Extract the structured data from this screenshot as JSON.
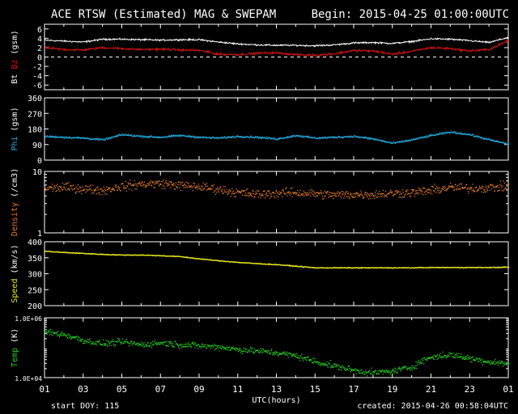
{
  "header": {
    "title": "ACE RTSW (Estimated) MAG & SWEPAM",
    "begin": "Begin: 2015-04-25 01:00:00UTC"
  },
  "footer": {
    "start_doy": "start DOY: 115",
    "created": "created: 2015-04-26 00:58:04UTC"
  },
  "colors": {
    "background": "#000000",
    "frame": "#ffffff",
    "bt": "#ffffff",
    "bz": "#dd1111",
    "phi": "#22aadd",
    "density": "#e07a2a",
    "speed": "#e8e81a",
    "temp": "#22cc22"
  },
  "chart_data": [
    {
      "type": "line",
      "panel": "mag",
      "ylabel_parts": [
        {
          "text": "Bt",
          "color": "#ffffff"
        },
        {
          "text": " ",
          "color": "#ffffff"
        },
        {
          "text": "Bz",
          "color": "#dd1111"
        },
        {
          "text": "  (gsm)",
          "color": "#ffffff"
        }
      ],
      "ylim": [
        -7,
        7
      ],
      "ticks": [
        -6,
        -4,
        -2,
        0,
        2,
        4,
        6
      ],
      "tick_labels": [
        "-6",
        "-4",
        "-2",
        "0",
        "2",
        "4",
        "6"
      ],
      "zero_line": true,
      "x": [
        1,
        2,
        3,
        4,
        5,
        6,
        7,
        8,
        9,
        10,
        11,
        12,
        13,
        14,
        15,
        16,
        17,
        18,
        19,
        20,
        21,
        22,
        23,
        24,
        25
      ],
      "series": [
        {
          "name": "Bt",
          "color": "#ffffff",
          "noise": 0.25,
          "values": [
            3.6,
            3.4,
            3.2,
            3.8,
            3.8,
            3.7,
            3.6,
            3.7,
            3.7,
            3.2,
            2.8,
            2.6,
            2.5,
            2.5,
            2.4,
            2.6,
            3.0,
            3.1,
            2.9,
            3.3,
            3.9,
            3.8,
            3.5,
            3.1,
            4.2
          ]
        },
        {
          "name": "Bz",
          "color": "#dd1111",
          "noise": 0.35,
          "values": [
            2.0,
            1.6,
            1.5,
            2.0,
            1.8,
            1.6,
            1.7,
            1.5,
            1.4,
            0.6,
            0.5,
            0.8,
            0.9,
            0.5,
            0.4,
            0.7,
            1.4,
            1.3,
            0.6,
            1.2,
            2.0,
            1.8,
            1.3,
            1.6,
            3.5
          ]
        }
      ]
    },
    {
      "type": "scatter",
      "panel": "phi",
      "ylabel_parts": [
        {
          "text": "Phi",
          "color": "#22aadd"
        },
        {
          "text": " (gsm)",
          "color": "#ffffff"
        }
      ],
      "ylim": [
        0,
        360
      ],
      "ticks": [
        0,
        90,
        180,
        270,
        360
      ],
      "tick_labels": [
        "0",
        "90",
        "180",
        "270",
        "360"
      ],
      "x": [
        1,
        2,
        3,
        4,
        5,
        6,
        7,
        8,
        9,
        10,
        11,
        12,
        13,
        14,
        15,
        16,
        17,
        18,
        19,
        20,
        21,
        22,
        23,
        24,
        25
      ],
      "series": [
        {
          "name": "Phi",
          "color": "#22aadd",
          "noise": 8,
          "values": [
            140,
            135,
            130,
            120,
            150,
            140,
            135,
            145,
            135,
            130,
            140,
            135,
            125,
            145,
            130,
            135,
            140,
            125,
            100,
            120,
            145,
            165,
            150,
            120,
            95
          ]
        }
      ]
    },
    {
      "type": "scatter",
      "panel": "density",
      "ylabel_parts": [
        {
          "text": "Density",
          "color": "#e07a2a"
        },
        {
          "text": " (/cm3)",
          "color": "#ffffff"
        }
      ],
      "log": true,
      "ylim": [
        1,
        10
      ],
      "ticks": [
        1,
        10
      ],
      "tick_labels": [
        "1",
        "10"
      ],
      "x": [
        1,
        2,
        3,
        4,
        5,
        6,
        7,
        8,
        9,
        10,
        11,
        12,
        13,
        14,
        15,
        16,
        17,
        18,
        19,
        20,
        21,
        22,
        23,
        24,
        25
      ],
      "series": [
        {
          "name": "Density",
          "color": "#e07a2a",
          "noise": 0.9,
          "values": [
            5.4,
            5.6,
            5.3,
            5.0,
            5.8,
            6.3,
            6.5,
            6.0,
            5.7,
            5.2,
            4.6,
            4.3,
            4.5,
            4.6,
            4.4,
            4.2,
            4.3,
            4.3,
            4.5,
            4.6,
            5.0,
            5.6,
            5.4,
            5.5,
            5.8
          ]
        }
      ]
    },
    {
      "type": "scatter",
      "panel": "speed",
      "ylabel_parts": [
        {
          "text": "Speed",
          "color": "#e8e81a"
        },
        {
          "text": " (km/s)",
          "color": "#ffffff"
        }
      ],
      "ylim": [
        200,
        400
      ],
      "ticks": [
        200,
        250,
        300,
        350,
        400
      ],
      "tick_labels": [
        "200",
        "250",
        "300",
        "350",
        "400"
      ],
      "x": [
        1,
        2,
        3,
        4,
        5,
        6,
        7,
        8,
        9,
        10,
        11,
        12,
        13,
        14,
        15,
        16,
        17,
        18,
        19,
        20,
        21,
        22,
        23,
        24,
        25
      ],
      "series": [
        {
          "name": "Speed",
          "color": "#e8e81a",
          "noise": 2,
          "values": [
            372,
            368,
            365,
            362,
            360,
            360,
            358,
            355,
            348,
            342,
            337,
            333,
            330,
            325,
            320,
            320,
            320,
            320,
            320,
            320,
            321,
            321,
            321,
            321,
            322
          ]
        }
      ]
    },
    {
      "type": "scatter",
      "panel": "temp",
      "ylabel_parts": [
        {
          "text": "Temp",
          "color": "#22cc22"
        },
        {
          "text": " (K)",
          "color": "#ffffff"
        }
      ],
      "log": true,
      "ylim": [
        10000,
        1000000
      ],
      "ticks": [
        10000,
        1000000
      ],
      "tick_labels": [
        "1.0E+04",
        "1.0E+06"
      ],
      "x": [
        1,
        2,
        3,
        4,
        5,
        6,
        7,
        8,
        9,
        10,
        11,
        12,
        13,
        14,
        15,
        16,
        17,
        18,
        19,
        20,
        21,
        22,
        23,
        24,
        25
      ],
      "series": [
        {
          "name": "Temp",
          "color": "#22cc22",
          "noise": 1.3,
          "values": [
            350000,
            280000,
            180000,
            140000,
            160000,
            130000,
            150000,
            130000,
            120000,
            110000,
            90000,
            80000,
            70000,
            55000,
            35000,
            25000,
            18000,
            15000,
            17000,
            23000,
            50000,
            60000,
            45000,
            35000,
            30000
          ]
        }
      ]
    }
  ],
  "x_axis": {
    "label": "UTC(hours)",
    "range": [
      1,
      25
    ],
    "major_ticks": [
      1,
      3,
      5,
      7,
      9,
      11,
      13,
      15,
      17,
      19,
      21,
      23,
      25
    ],
    "tick_labels": [
      "01",
      "03",
      "05",
      "07",
      "09",
      "11",
      "13",
      "15",
      "17",
      "19",
      "21",
      "23",
      "01"
    ]
  }
}
